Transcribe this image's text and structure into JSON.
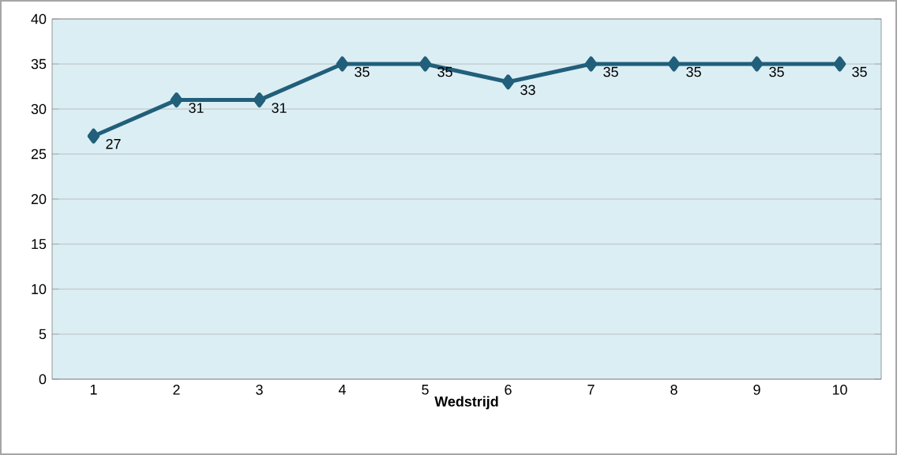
{
  "chart_data": {
    "type": "line",
    "xlabel": "Wedstrijd",
    "categories": [
      "1",
      "2",
      "3",
      "4",
      "5",
      "6",
      "7",
      "8",
      "9",
      "10"
    ],
    "values": [
      27,
      31,
      31,
      35,
      35,
      33,
      35,
      35,
      35,
      35
    ],
    "color": "#215f7a",
    "marker": "diamond",
    "line_style": "solid",
    "ylim": [
      0,
      40
    ],
    "yticks": [
      0,
      5,
      10,
      15,
      20,
      25,
      30,
      35,
      40
    ],
    "grid": "y",
    "data_labels": true
  }
}
